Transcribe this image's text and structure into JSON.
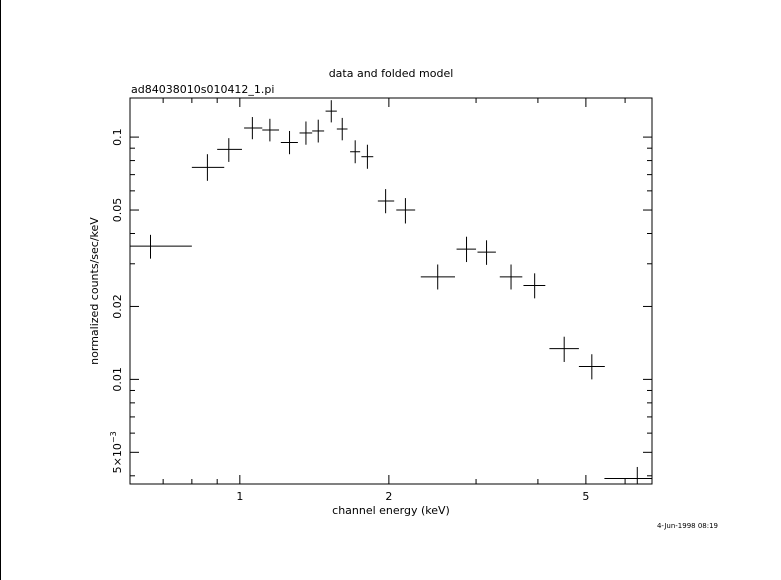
{
  "chart_data": {
    "type": "scatter",
    "title": "data and folded model",
    "subtitle": "ad84038010s010412_1.pi",
    "xlabel": "channel energy (keV)",
    "ylabel": "normalized counts/sec/keV",
    "timestamp": "4-Jun-1998 08:19",
    "xscale": "log",
    "yscale": "log",
    "xlim": [
      0.6,
      6.8
    ],
    "ylim": [
      0.0037,
      0.145
    ],
    "grid": false,
    "legend": "none",
    "x_ticks": [
      {
        "value": 1,
        "label": "1"
      },
      {
        "value": 2,
        "label": "2"
      },
      {
        "value": 5,
        "label": "5"
      }
    ],
    "y_ticks": [
      {
        "value": 0.1,
        "label": "0.1"
      },
      {
        "value": 0.05,
        "label": "0.05"
      },
      {
        "value": 0.02,
        "label": "0.02"
      },
      {
        "value": 0.01,
        "label": "0.01"
      },
      {
        "value": 0.005,
        "label": "5×10",
        "sup": "−3"
      }
    ],
    "series": [
      {
        "points": [
          {
            "x": 0.66,
            "x_lo": 0.6,
            "x_hi": 0.8,
            "y": 0.0355,
            "y_lo": 0.0315,
            "y_hi": 0.0395
          },
          {
            "x": 0.86,
            "x_lo": 0.8,
            "x_hi": 0.93,
            "y": 0.075,
            "y_lo": 0.066,
            "y_hi": 0.085
          },
          {
            "x": 0.95,
            "x_lo": 0.9,
            "x_hi": 1.01,
            "y": 0.089,
            "y_lo": 0.079,
            "y_hi": 0.099
          },
          {
            "x": 1.06,
            "x_lo": 1.02,
            "x_hi": 1.11,
            "y": 0.109,
            "y_lo": 0.098,
            "y_hi": 0.121
          },
          {
            "x": 1.15,
            "x_lo": 1.11,
            "x_hi": 1.2,
            "y": 0.107,
            "y_lo": 0.096,
            "y_hi": 0.119
          },
          {
            "x": 1.26,
            "x_lo": 1.21,
            "x_hi": 1.31,
            "y": 0.095,
            "y_lo": 0.085,
            "y_hi": 0.106
          },
          {
            "x": 1.36,
            "x_lo": 1.32,
            "x_hi": 1.4,
            "y": 0.104,
            "y_lo": 0.093,
            "y_hi": 0.116
          },
          {
            "x": 1.44,
            "x_lo": 1.4,
            "x_hi": 1.48,
            "y": 0.106,
            "y_lo": 0.095,
            "y_hi": 0.118
          },
          {
            "x": 1.53,
            "x_lo": 1.49,
            "x_hi": 1.57,
            "y": 0.128,
            "y_lo": 0.115,
            "y_hi": 0.142
          },
          {
            "x": 1.61,
            "x_lo": 1.57,
            "x_hi": 1.65,
            "y": 0.108,
            "y_lo": 0.097,
            "y_hi": 0.12
          },
          {
            "x": 1.71,
            "x_lo": 1.67,
            "x_hi": 1.75,
            "y": 0.087,
            "y_lo": 0.078,
            "y_hi": 0.097
          },
          {
            "x": 1.81,
            "x_lo": 1.76,
            "x_hi": 1.86,
            "y": 0.083,
            "y_lo": 0.074,
            "y_hi": 0.093
          },
          {
            "x": 1.97,
            "x_lo": 1.9,
            "x_hi": 2.05,
            "y": 0.0545,
            "y_lo": 0.0485,
            "y_hi": 0.061
          },
          {
            "x": 2.16,
            "x_lo": 2.07,
            "x_hi": 2.26,
            "y": 0.05,
            "y_lo": 0.044,
            "y_hi": 0.056
          },
          {
            "x": 2.51,
            "x_lo": 2.32,
            "x_hi": 2.72,
            "y": 0.0265,
            "y_lo": 0.0235,
            "y_hi": 0.0298
          },
          {
            "x": 2.87,
            "x_lo": 2.74,
            "x_hi": 3.0,
            "y": 0.0345,
            "y_lo": 0.0305,
            "y_hi": 0.0388
          },
          {
            "x": 3.15,
            "x_lo": 3.02,
            "x_hi": 3.29,
            "y": 0.0335,
            "y_lo": 0.0297,
            "y_hi": 0.0375
          },
          {
            "x": 3.53,
            "x_lo": 3.35,
            "x_hi": 3.72,
            "y": 0.0265,
            "y_lo": 0.0235,
            "y_hi": 0.0298
          },
          {
            "x": 3.94,
            "x_lo": 3.74,
            "x_hi": 4.14,
            "y": 0.0244,
            "y_lo": 0.0216,
            "y_hi": 0.0274
          },
          {
            "x": 4.52,
            "x_lo": 4.22,
            "x_hi": 4.84,
            "y": 0.0134,
            "y_lo": 0.0118,
            "y_hi": 0.015
          },
          {
            "x": 5.14,
            "x_lo": 4.84,
            "x_hi": 5.46,
            "y": 0.0113,
            "y_lo": 0.01,
            "y_hi": 0.0127
          },
          {
            "x": 6.35,
            "x_lo": 5.45,
            "x_hi": 6.8,
            "y": 0.0039,
            "y_lo": 0.0037,
            "y_hi": 0.00435
          }
        ]
      }
    ]
  }
}
